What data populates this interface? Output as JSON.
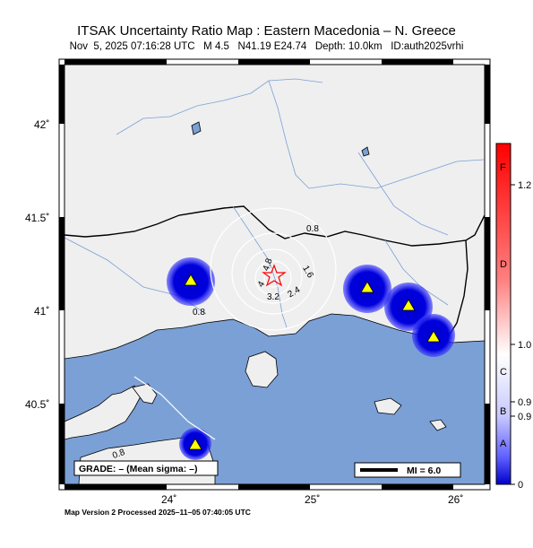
{
  "header": {
    "title": "ITSAK Uncertainty Ratio Map : Eastern Macedonia – N. Greece",
    "subtitle": "Nov  5, 2025 07:16:28 UTC   M 4.5   N41.19 E24.74   Depth: 10.0km   ID:auth2025vrhi"
  },
  "map": {
    "lat_labels": [
      "42˚",
      "41.5˚",
      "41˚",
      "40.5˚"
    ],
    "lon_labels": [
      "24˚",
      "25˚",
      "26˚"
    ],
    "contour_labels": [
      "0.8",
      "1.6",
      "2.4",
      "3.2",
      "4",
      "4.8",
      "0.8",
      "0.8"
    ],
    "grade_text": "GRADE: – (Mean sigma: –)",
    "scale_text": "MI = 6.0",
    "colors": {
      "land": "#efefef",
      "sea": "#7ba0d6",
      "lake": "#7ba0d6",
      "station": "#ffff00",
      "epicenter": "#ff0000",
      "high": "#ff0000",
      "low": "#0000cc"
    }
  },
  "colorbar": {
    "letters": [
      "F",
      "D",
      "C",
      "B",
      "A"
    ],
    "values": [
      "1.2",
      "1.0",
      "0.9",
      "0.9",
      "0"
    ]
  },
  "footer": {
    "text": "Map Version 2 Processed 2025–11–05 07:40:05 UTC"
  }
}
